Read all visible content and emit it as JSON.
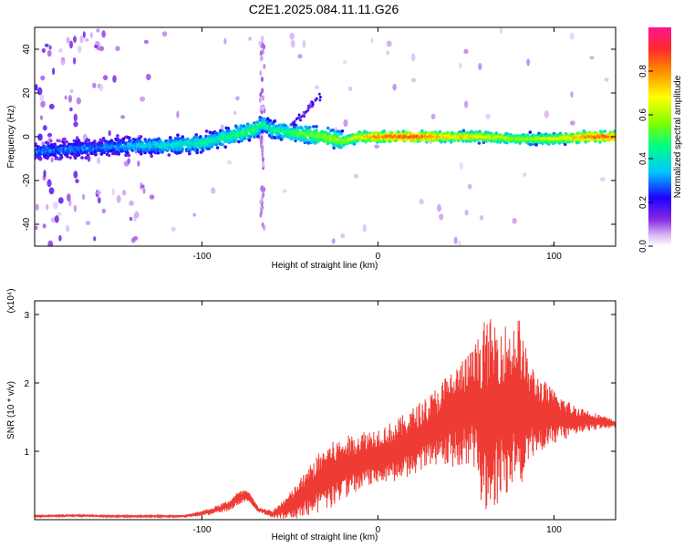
{
  "title": "C2E1.2025.084.11.11.G26",
  "colors": {
    "snr_line": "#ee3b33",
    "colorbar_stops": [
      "#ffffff",
      "#d9b8f5",
      "#8a2be2",
      "#1f00ff",
      "#00c8ff",
      "#00ff7f",
      "#7fff00",
      "#ffff00",
      "#ff8c00",
      "#ff2a2a",
      "#ff1493"
    ]
  },
  "chart_data": [
    {
      "type": "heatmap",
      "xlabel": "Height of straight line (km)",
      "ylabel": "Frequency (Hz)",
      "xlim": [
        -195,
        135
      ],
      "ylim": [
        -50,
        50
      ],
      "xticks": [
        -100,
        0,
        100
      ],
      "xtick_labels": [
        "-100",
        "0",
        "100"
      ],
      "yticks": [
        -40,
        -20,
        0,
        20,
        40
      ],
      "ytick_labels": [
        "-40",
        "-20",
        "0",
        "20",
        "40"
      ],
      "grid": false,
      "colorbar": {
        "label": "Normalized spectral amplitude",
        "range": [
          0,
          1
        ],
        "ticks": [
          0.0,
          0.2,
          0.4,
          0.6,
          0.8
        ],
        "tick_labels": [
          "0.0",
          "0.2",
          "0.4",
          "0.6",
          "0.8"
        ]
      },
      "ridge": {
        "x": [
          -195,
          -180,
          -160,
          -140,
          -120,
          -100,
          -90,
          -80,
          -70,
          -65,
          -60,
          -50,
          -40,
          -30,
          -20,
          -10,
          0,
          20,
          40,
          60,
          80,
          100,
          120,
          135
        ],
        "freq": [
          -7,
          -6,
          -5,
          -4,
          -4,
          -3,
          -1,
          1,
          3,
          6,
          3,
          2,
          1,
          0,
          -2,
          0,
          0,
          0,
          0,
          0,
          -1,
          -1,
          0,
          0
        ],
        "amplitude": [
          0.3,
          0.3,
          0.3,
          0.35,
          0.4,
          0.45,
          0.45,
          0.5,
          0.5,
          0.45,
          0.45,
          0.5,
          0.55,
          0.6,
          0.6,
          0.7,
          0.85,
          0.9,
          0.75,
          0.7,
          0.6,
          0.65,
          0.85,
          0.9
        ]
      }
    },
    {
      "type": "line",
      "xlabel": "Height of straight line (km)",
      "ylabel": "SNR (10 * v/v)",
      "y_multiplier": "(x10⁴)",
      "xlim": [
        -195,
        135
      ],
      "ylim": [
        0,
        3.2
      ],
      "xticks": [
        -100,
        0,
        100
      ],
      "xtick_labels": [
        "-100",
        "0",
        "100"
      ],
      "yticks": [
        1,
        2,
        3
      ],
      "ytick_labels": [
        "1",
        "2",
        "3"
      ],
      "grid": false,
      "series": [
        {
          "x": [
            -195,
            -170,
            -150,
            -130,
            -110,
            -95,
            -85,
            -80,
            -75,
            -72,
            -68,
            -60,
            -50,
            -40,
            -30,
            -20,
            -10,
            0,
            10,
            20,
            30,
            40,
            50,
            55,
            60,
            65,
            70,
            75,
            80,
            85,
            90,
            100,
            110,
            120,
            135
          ],
          "y_mean": [
            0.05,
            0.06,
            0.05,
            0.05,
            0.05,
            0.12,
            0.2,
            0.3,
            0.35,
            0.28,
            0.15,
            0.08,
            0.2,
            0.4,
            0.6,
            0.75,
            0.85,
            0.95,
            1.0,
            1.15,
            1.3,
            1.45,
            1.6,
            1.65,
            1.5,
            1.55,
            1.6,
            1.65,
            1.7,
            1.6,
            1.55,
            1.5,
            1.45,
            1.45,
            1.4
          ],
          "y_spread": [
            0.02,
            0.02,
            0.01,
            0.01,
            0.02,
            0.05,
            0.08,
            0.1,
            0.1,
            0.08,
            0.04,
            0.05,
            0.2,
            0.35,
            0.5,
            0.45,
            0.45,
            0.4,
            0.45,
            0.5,
            0.55,
            0.7,
            0.8,
            0.9,
            1.4,
            1.4,
            1.3,
            1.2,
            1.3,
            0.8,
            0.6,
            0.4,
            0.25,
            0.15,
            0.05
          ]
        }
      ]
    }
  ]
}
